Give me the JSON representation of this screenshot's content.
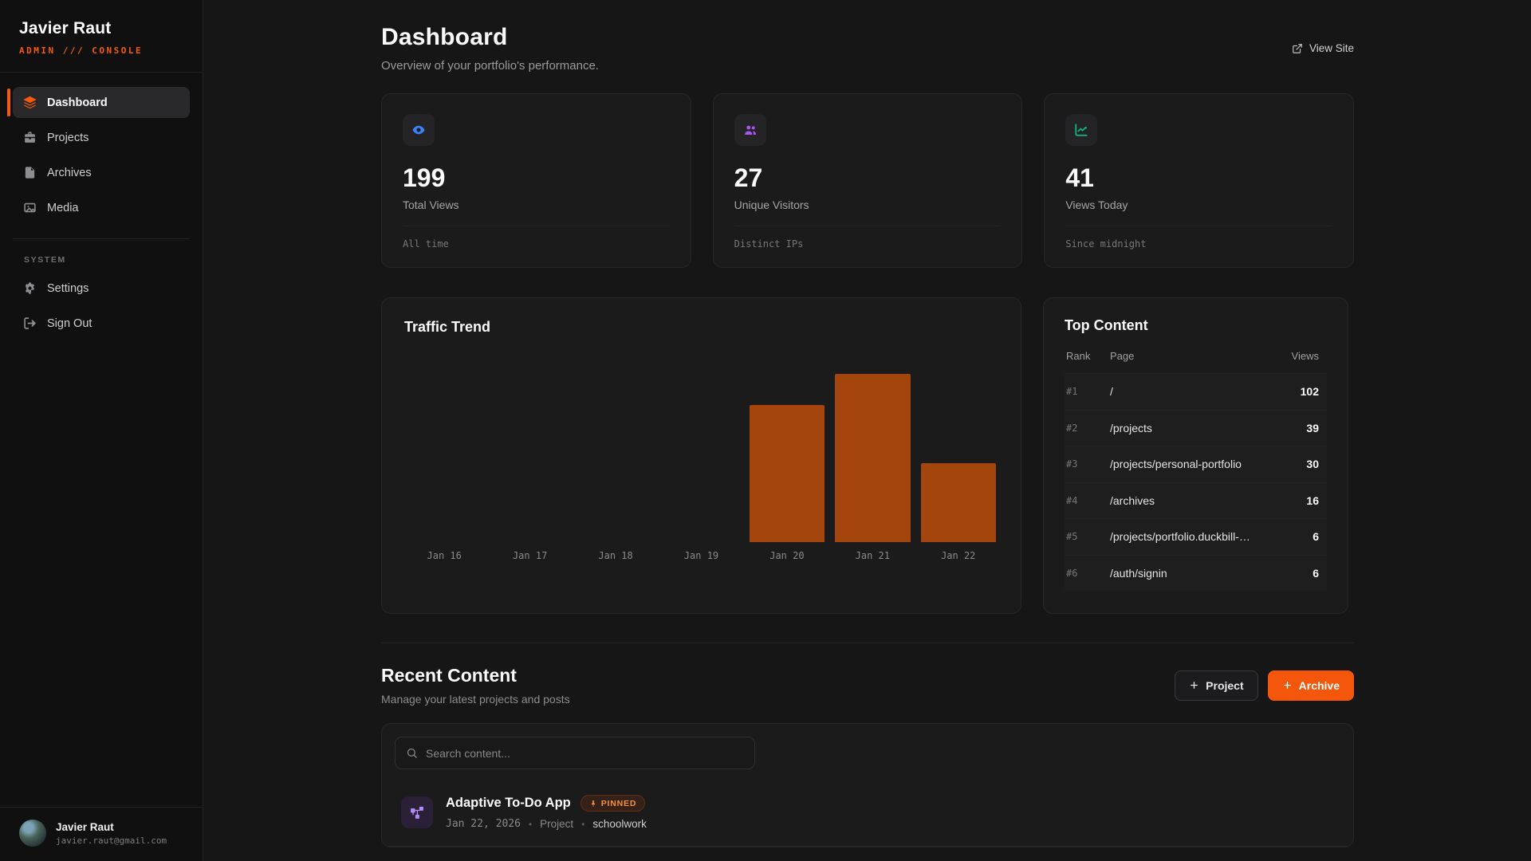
{
  "sidebar": {
    "name": "Javier Raut",
    "subtitle": "ADMIN /// CONSOLE",
    "nav": [
      {
        "label": "Dashboard",
        "icon": "layers-icon",
        "active": true
      },
      {
        "label": "Projects",
        "icon": "briefcase-icon",
        "active": false
      },
      {
        "label": "Archives",
        "icon": "file-icon",
        "active": false
      },
      {
        "label": "Media",
        "icon": "image-icon",
        "active": false
      }
    ],
    "system_label": "SYSTEM",
    "system_nav": [
      {
        "label": "Settings",
        "icon": "gear-icon",
        "active": false
      },
      {
        "label": "Sign Out",
        "icon": "sign-out-icon",
        "active": false
      }
    ],
    "user": {
      "name": "Javier Raut",
      "email": "javier.raut@gmail.com"
    }
  },
  "header": {
    "title": "Dashboard",
    "subtitle": "Overview of your portfolio's performance.",
    "view_site": "View Site"
  },
  "stats": [
    {
      "value": "199",
      "label": "Total Views",
      "footnote": "All time",
      "icon": "eye-icon",
      "color": "#3b82f6"
    },
    {
      "value": "27",
      "label": "Unique Visitors",
      "footnote": "Distinct IPs",
      "icon": "users-icon",
      "color": "#a855f7"
    },
    {
      "value": "41",
      "label": "Views Today",
      "footnote": "Since midnight",
      "icon": "chart-line-icon",
      "color": "#10b981"
    }
  ],
  "chart_data": {
    "type": "bar",
    "title": "Traffic Trend",
    "categories": [
      "Jan 16",
      "Jan 17",
      "Jan 18",
      "Jan 19",
      "Jan 20",
      "Jan 21",
      "Jan 22"
    ],
    "values": [
      0,
      0,
      0,
      0,
      71,
      87,
      41
    ],
    "xlabel": "",
    "ylabel": "",
    "ylim": [
      0,
      97
    ],
    "grid": false,
    "legend": "none",
    "bar_color": "#a3450d"
  },
  "top_content": {
    "title": "Top Content",
    "headers": {
      "rank": "Rank",
      "page": "Page",
      "views": "Views"
    },
    "rows": [
      {
        "rank": "#1",
        "page": "/",
        "views": "102"
      },
      {
        "rank": "#2",
        "page": "/projects",
        "views": "39"
      },
      {
        "rank": "#3",
        "page": "/projects/personal-portfolio",
        "views": "30"
      },
      {
        "rank": "#4",
        "page": "/archives",
        "views": "16"
      },
      {
        "rank": "#5",
        "page": "/projects/portfolio.duckbill-…",
        "views": "6"
      },
      {
        "rank": "#6",
        "page": "/auth/signin",
        "views": "6"
      }
    ]
  },
  "recent": {
    "title": "Recent Content",
    "subtitle": "Manage your latest projects and posts",
    "project_button": "Project",
    "archive_button": "Archive",
    "search_placeholder": "Search content...",
    "items": [
      {
        "title": "Adaptive To-Do App",
        "badge": "PINNED",
        "date": "Jan 22, 2026",
        "type": "Project",
        "tag": "schoolwork"
      }
    ]
  },
  "colors": {
    "accent_orange": "#f75a0c",
    "button_orange": "#f4560b",
    "bar_orange": "#a3450d",
    "stat_blue": "#3b82f6",
    "stat_purple": "#a855f7",
    "stat_green": "#10b981"
  }
}
